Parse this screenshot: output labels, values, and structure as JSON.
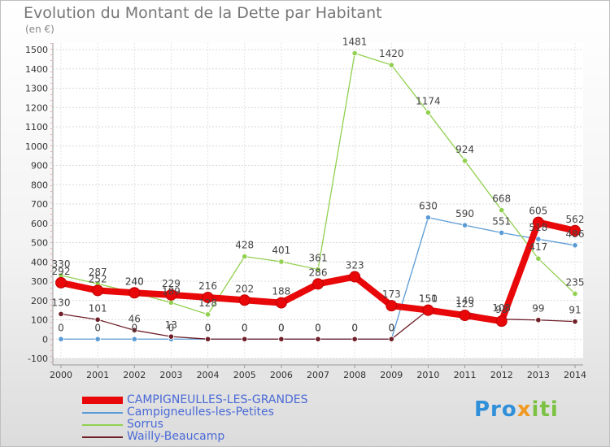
{
  "title": "Evolution du Montant de la Dette par Habitant",
  "unit": "(en €)",
  "logo": [
    "Pro",
    "x",
    "iti"
  ],
  "chart_data": {
    "type": "line",
    "categories": [
      "2000",
      "2001",
      "2002",
      "2003",
      "2004",
      "2005",
      "2006",
      "2007",
      "2008",
      "2009",
      "2010",
      "2011",
      "2012",
      "2013",
      "2014"
    ],
    "ylim": [
      -100,
      1500
    ],
    "yticks": [
      -100,
      0,
      100,
      200,
      300,
      400,
      500,
      600,
      700,
      800,
      900,
      1000,
      1100,
      1200,
      1300,
      1400,
      1500
    ],
    "grid": true,
    "legend_position": "bottom-left",
    "series": [
      {
        "name": "CAMPIGNEULLES-LES-GRANDES",
        "color": "#e8080a",
        "values": [
          292,
          252,
          240,
          229,
          216,
          202,
          188,
          286,
          323,
          173,
          150,
          123,
          93,
          605,
          562
        ]
      },
      {
        "name": "Campigneulles-les-Petites",
        "color": "#5b9bd5",
        "values": [
          0,
          0,
          0,
          0,
          0,
          0,
          0,
          0,
          0,
          0,
          630,
          590,
          551,
          518,
          486
        ]
      },
      {
        "name": "Sorrus",
        "color": "#92d050",
        "values": [
          330,
          287,
          240,
          189,
          128,
          428,
          401,
          361,
          1481,
          1420,
          1174,
          924,
          668,
          417,
          235
        ]
      },
      {
        "name": "Wailly-Beaucamp",
        "color": "#6e1f28",
        "values": [
          130,
          101,
          46,
          13,
          0,
          0,
          0,
          0,
          0,
          0,
          151,
          140,
          103,
          99,
          91
        ]
      }
    ]
  }
}
